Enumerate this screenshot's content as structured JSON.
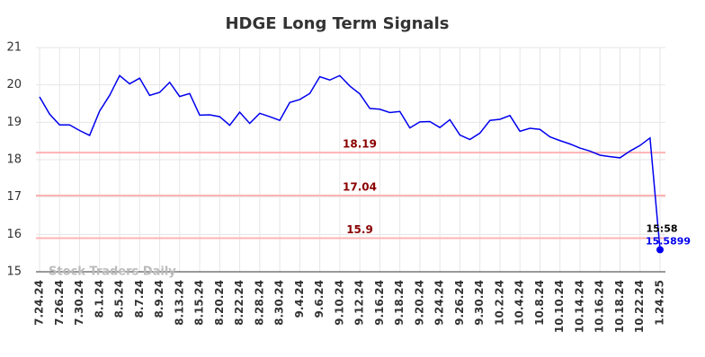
{
  "chart_data": {
    "type": "line",
    "title": "HDGE Long Term Signals",
    "categories": [
      "7.24.24",
      null,
      "7.26.24",
      null,
      "7.30.24",
      null,
      "8.1.24",
      null,
      "8.5.24",
      null,
      "8.7.24",
      null,
      "8.9.24",
      null,
      "8.13.24",
      null,
      "8.15.24",
      null,
      "8.20.24",
      null,
      "8.22.24",
      null,
      "8.28.24",
      null,
      "8.30.24",
      null,
      "9.4.24",
      null,
      "9.6.24",
      null,
      "9.10.24",
      null,
      "9.12.24",
      null,
      "9.16.24",
      null,
      "9.18.24",
      null,
      "9.20.24",
      null,
      "9.24.24",
      null,
      "9.26.24",
      null,
      "9.30.24",
      null,
      "10.2.24",
      null,
      "10.4.24",
      null,
      "10.8.24",
      null,
      "10.10.24",
      null,
      "10.14.24",
      null,
      "10.16.24",
      null,
      "10.18.24",
      null,
      "10.22.24",
      null,
      "1.24.25"
    ],
    "values": [
      19.68,
      19.22,
      18.93,
      18.93,
      18.78,
      18.65,
      19.3,
      19.72,
      20.25,
      20.03,
      20.18,
      19.72,
      19.8,
      20.07,
      19.69,
      19.77,
      19.19,
      19.2,
      19.15,
      18.92,
      19.27,
      18.97,
      19.24,
      19.15,
      19.05,
      19.53,
      19.61,
      19.77,
      20.22,
      20.13,
      20.25,
      19.97,
      19.76,
      19.37,
      19.35,
      19.26,
      19.29,
      18.85,
      19.01,
      19.02,
      18.86,
      19.07,
      18.66,
      18.54,
      18.71,
      19.05,
      19.08,
      19.18,
      18.76,
      18.84,
      18.81,
      18.61,
      18.51,
      18.42,
      18.31,
      18.23,
      18.12,
      18.08,
      18.05,
      18.23,
      18.38,
      18.58,
      15.5899
    ],
    "color": "#0000ee",
    "ylim": [
      15,
      21
    ],
    "yticks": [
      15,
      16,
      17,
      18,
      19,
      20,
      21
    ],
    "grid": true,
    "levels": [
      18.19,
      17.04,
      15.9
    ],
    "level_color": "#ffb3b3",
    "level_label_color": "#8b0000",
    "last_time": "15:58",
    "watermark": "Stock Traders Daily"
  }
}
